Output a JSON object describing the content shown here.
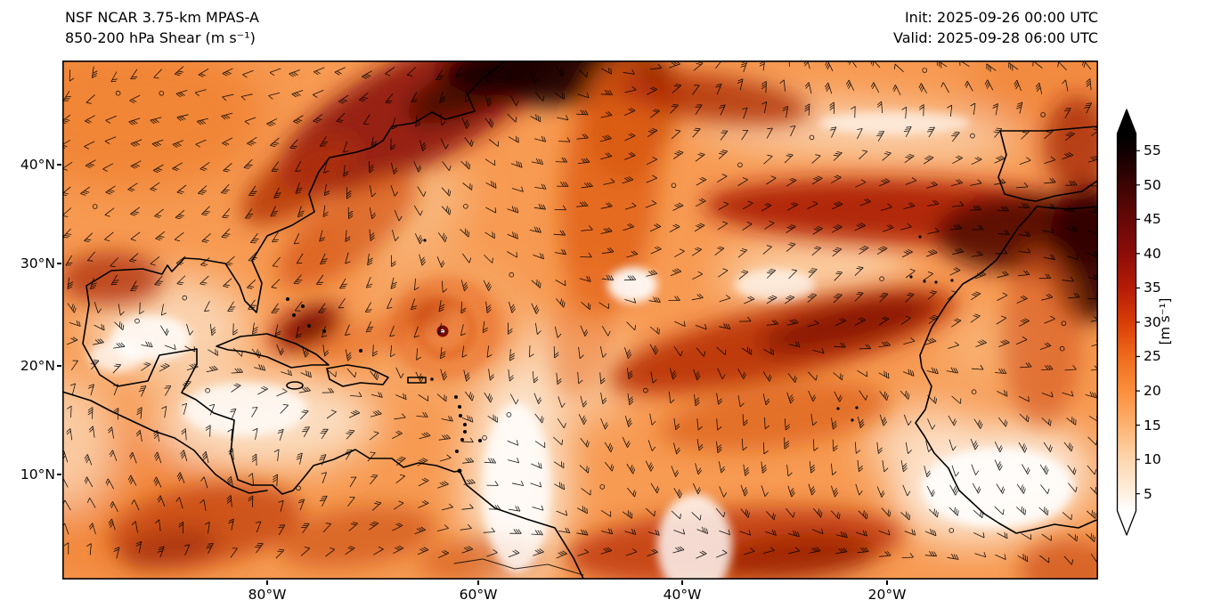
{
  "header": {
    "model": "NSF NCAR 3.75-km MPAS-A",
    "field": "850-200 hPa Shear (m s⁻¹)",
    "init": "Init: 2025-09-26 00:00 UTC",
    "valid": "Valid: 2025-09-28 06:00 UTC"
  },
  "chart_data": {
    "type": "heatmap",
    "title": "850-200 hPa Shear (m s⁻¹)",
    "model": "NSF NCAR 3.75-km MPAS-A",
    "init_time": "2025-09-26 00:00 UTC",
    "valid_time": "2025-09-28 06:00 UTC",
    "units": "m s⁻¹",
    "x_tick_labels": [
      "80°W",
      "60°W",
      "40°W",
      "20°W"
    ],
    "y_tick_labels": [
      "40°N",
      "30°N",
      "20°N",
      "10°N"
    ],
    "lon_range_deg_west": [
      100,
      0
    ],
    "lat_range_deg_north": [
      0,
      50
    ],
    "colorbar": {
      "label": "[m s⁻¹]",
      "ticks": [
        5,
        10,
        15,
        20,
        25,
        30,
        35,
        40,
        45,
        50,
        55
      ],
      "extend": "both",
      "low_color": "#ffffff",
      "high_color": "#000000",
      "palette": [
        "#ffffff",
        "#fef0e1",
        "#fdd6ae",
        "#fdb271",
        "#fb8f3c",
        "#ef6a1c",
        "#d93d08",
        "#b51b07",
        "#8d0d08",
        "#650807",
        "#3c0403",
        "#000000"
      ]
    },
    "overlays": [
      "wind barbs",
      "coastlines"
    ],
    "description": "Filled field of 850-200 hPa vertical wind shear magnitude over the Atlantic basin with wind barbs and coastlines; dark high-shear bands stretch across the subtropical Atlantic and off the U.S. East Coast, low-shear white areas cover the Caribbean and parts of the eastern tropical Atlantic; a compact tropical-cyclone signature appears near 25°N 63°W."
  }
}
